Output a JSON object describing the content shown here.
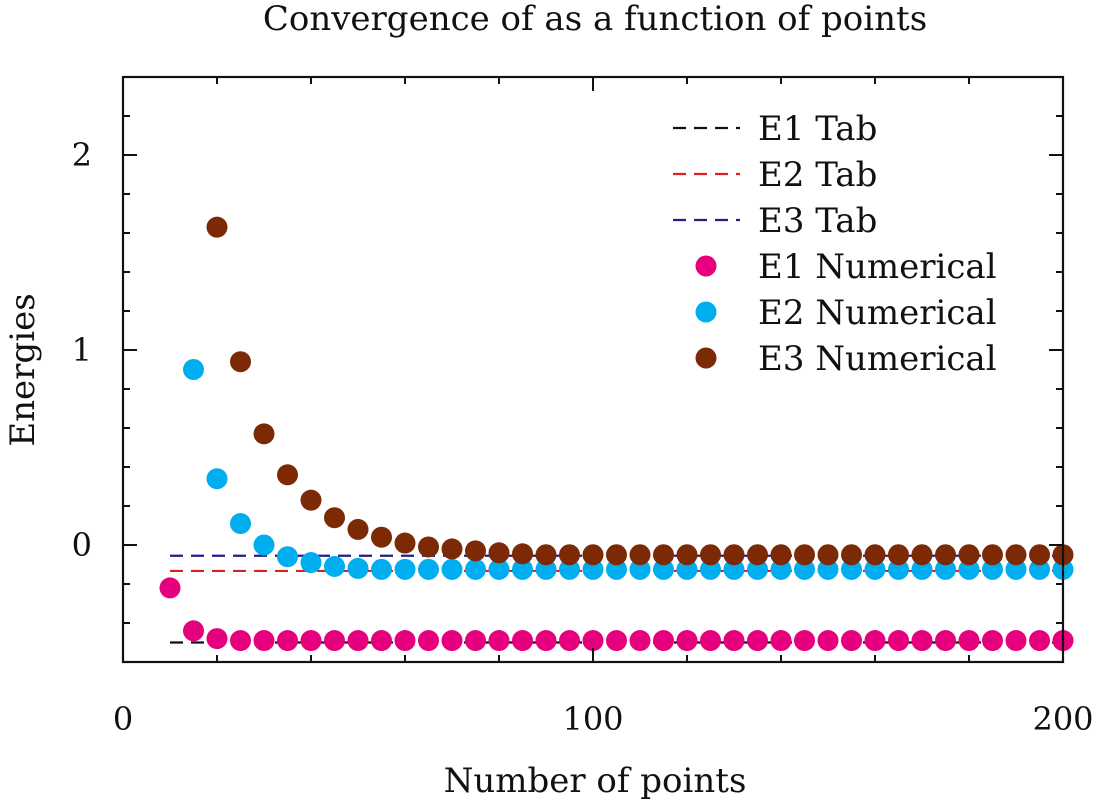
{
  "chart_data": {
    "type": "scatter",
    "title": "Convergence of as a function of points",
    "xlabel": "Number of points",
    "ylabel": "Energies",
    "xlim": [
      0,
      200
    ],
    "ylim": [
      -0.6,
      2.4
    ],
    "x_ticks": [
      0,
      100,
      200
    ],
    "x_tick_labels": [
      "0",
      "100",
      "200"
    ],
    "y_ticks": [
      0,
      1,
      2
    ],
    "y_tick_labels": [
      "0",
      "1",
      "2"
    ],
    "grid": false,
    "legend_position": "top-right",
    "lines": [
      {
        "name": "E1 Tab",
        "color": "#111111",
        "style": "dashed",
        "y": -0.5
      },
      {
        "name": "E2 Tab",
        "color": "#e02020",
        "style": "dashed",
        "y": -0.133
      },
      {
        "name": "E3 Tab",
        "color": "#1f1f8f",
        "style": "dashed",
        "y": -0.055
      }
    ],
    "line_x_range": [
      10,
      200
    ],
    "series": [
      {
        "name": "E1 Numerical",
        "color": "#e6007e",
        "x": [
          10,
          15,
          20,
          25,
          30,
          35,
          40,
          45,
          50,
          55,
          60,
          65,
          70,
          75,
          80,
          85,
          90,
          95,
          100,
          105,
          110,
          115,
          120,
          125,
          130,
          135,
          140,
          145,
          150,
          155,
          160,
          165,
          170,
          175,
          180,
          185,
          190,
          195,
          200
        ],
        "y": [
          -0.22,
          -0.44,
          -0.48,
          -0.49,
          -0.49,
          -0.49,
          -0.49,
          -0.49,
          -0.49,
          -0.49,
          -0.49,
          -0.49,
          -0.49,
          -0.49,
          -0.49,
          -0.49,
          -0.49,
          -0.49,
          -0.49,
          -0.49,
          -0.49,
          -0.49,
          -0.49,
          -0.49,
          -0.49,
          -0.49,
          -0.49,
          -0.49,
          -0.49,
          -0.49,
          -0.49,
          -0.49,
          -0.49,
          -0.49,
          -0.49,
          -0.49,
          -0.49,
          -0.49,
          -0.49
        ]
      },
      {
        "name": "E2 Numerical",
        "color": "#00aeef",
        "x": [
          15,
          20,
          25,
          30,
          35,
          40,
          45,
          50,
          55,
          60,
          65,
          70,
          75,
          80,
          85,
          90,
          95,
          100,
          105,
          110,
          115,
          120,
          125,
          130,
          135,
          140,
          145,
          150,
          155,
          160,
          165,
          170,
          175,
          180,
          185,
          190,
          195,
          200
        ],
        "y": [
          0.9,
          0.34,
          0.11,
          0.0,
          -0.06,
          -0.09,
          -0.11,
          -0.12,
          -0.125,
          -0.125,
          -0.125,
          -0.125,
          -0.125,
          -0.125,
          -0.125,
          -0.125,
          -0.125,
          -0.125,
          -0.125,
          -0.125,
          -0.125,
          -0.125,
          -0.125,
          -0.125,
          -0.125,
          -0.125,
          -0.125,
          -0.125,
          -0.125,
          -0.125,
          -0.125,
          -0.125,
          -0.125,
          -0.125,
          -0.125,
          -0.125,
          -0.125,
          -0.125
        ]
      },
      {
        "name": "E3 Numerical",
        "color": "#7b2a05",
        "x": [
          20,
          25,
          30,
          35,
          40,
          45,
          50,
          55,
          60,
          65,
          70,
          75,
          80,
          85,
          90,
          95,
          100,
          105,
          110,
          115,
          120,
          125,
          130,
          135,
          140,
          145,
          150,
          155,
          160,
          165,
          170,
          175,
          180,
          185,
          190,
          195,
          200
        ],
        "y": [
          1.63,
          0.94,
          0.57,
          0.36,
          0.23,
          0.14,
          0.08,
          0.04,
          0.01,
          -0.01,
          -0.02,
          -0.03,
          -0.04,
          -0.045,
          -0.05,
          -0.05,
          -0.05,
          -0.05,
          -0.05,
          -0.05,
          -0.05,
          -0.05,
          -0.05,
          -0.05,
          -0.05,
          -0.05,
          -0.05,
          -0.05,
          -0.05,
          -0.05,
          -0.05,
          -0.05,
          -0.05,
          -0.05,
          -0.05,
          -0.05,
          -0.05
        ]
      }
    ]
  }
}
